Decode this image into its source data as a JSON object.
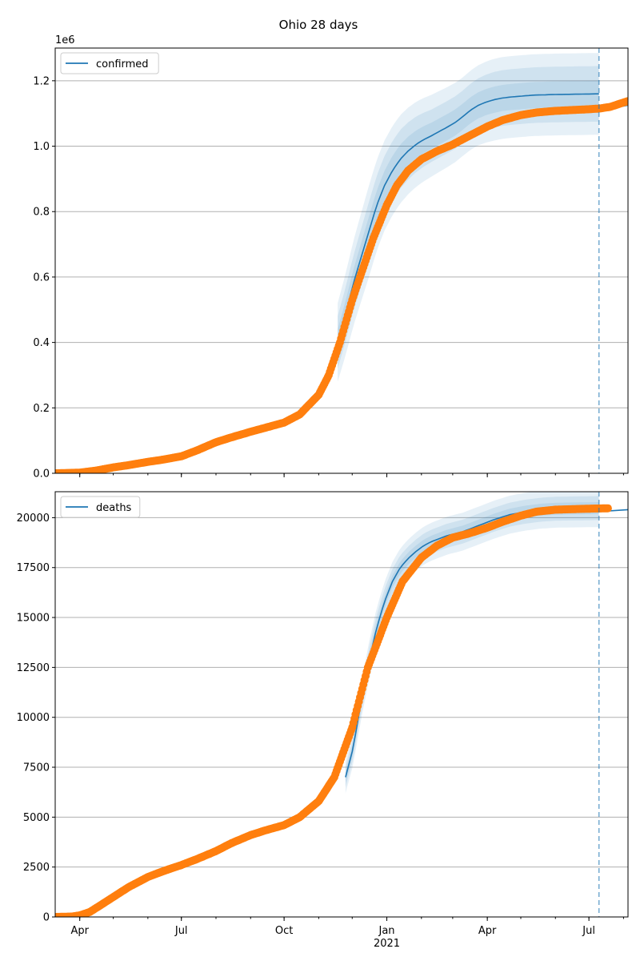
{
  "figure": {
    "title": "Ohio 28 days"
  },
  "colors": {
    "model": "#1f77b4",
    "observed": "#ff7f0e",
    "grid": "#b0b0b0"
  },
  "chart_data": [
    {
      "type": "line",
      "name": "confirmed-panel",
      "x_axis": {
        "type": "date",
        "range": [
          "2020-03-10",
          "2021-08-05"
        ],
        "major_ticks": [
          {
            "date": "2020-04-01",
            "label": "Apr"
          },
          {
            "date": "2020-07-01",
            "label": "Jul"
          },
          {
            "date": "2020-10-01",
            "label": "Oct"
          },
          {
            "date": "2021-01-01",
            "label": "Jan"
          },
          {
            "date": "2021-04-01",
            "label": "Apr"
          },
          {
            "date": "2021-07-01",
            "label": "Jul"
          }
        ],
        "show_tick_labels": false
      },
      "y_axis": {
        "ylim": [
          0,
          1300000
        ],
        "tick_values": [
          0,
          200000,
          400000,
          600000,
          800000,
          1000000,
          1200000
        ],
        "tick_labels": [
          "0.0",
          "0.2",
          "0.4",
          "0.6",
          "0.8",
          "1.0",
          "1.2"
        ],
        "offset_label": "1e6"
      },
      "grid": "horizontal",
      "legend": {
        "placement": "upper-left",
        "label": "confirmed"
      },
      "forecast_line": "2021-07-10",
      "model": [
        [
          "2020-11-18",
          400000
        ],
        [
          "2020-11-25",
          485000
        ],
        [
          "2020-12-02",
          580000
        ],
        [
          "2020-12-09",
          660000
        ],
        [
          "2020-12-16",
          740000
        ],
        [
          "2020-12-23",
          820000
        ],
        [
          "2020-12-30",
          880000
        ],
        [
          "2021-01-06",
          925000
        ],
        [
          "2021-01-13",
          960000
        ],
        [
          "2021-01-20",
          985000
        ],
        [
          "2021-01-27",
          1005000
        ],
        [
          "2021-02-03",
          1020000
        ],
        [
          "2021-02-10",
          1032000
        ],
        [
          "2021-02-17",
          1045000
        ],
        [
          "2021-02-24",
          1058000
        ],
        [
          "2021-03-03",
          1072000
        ],
        [
          "2021-03-10",
          1090000
        ],
        [
          "2021-03-17",
          1110000
        ],
        [
          "2021-03-24",
          1125000
        ],
        [
          "2021-03-31",
          1135000
        ],
        [
          "2021-04-07",
          1142000
        ],
        [
          "2021-04-14",
          1147000
        ],
        [
          "2021-04-21",
          1150000
        ],
        [
          "2021-04-28",
          1152000
        ],
        [
          "2021-05-05",
          1154000
        ],
        [
          "2021-05-12",
          1156000
        ],
        [
          "2021-06-01",
          1158000
        ],
        [
          "2021-07-10",
          1160000
        ]
      ],
      "band_offsets": [
        [
          "2020-11-18",
          40000,
          80000,
          120000
        ],
        [
          "2020-12-16",
          45000,
          90000,
          140000
        ],
        [
          "2021-01-13",
          45000,
          90000,
          135000
        ],
        [
          "2021-02-10",
          40000,
          80000,
          125000
        ],
        [
          "2021-03-10",
          40000,
          80000,
          120000
        ],
        [
          "2021-04-07",
          40000,
          85000,
          125000
        ],
        [
          "2021-05-05",
          40000,
          85000,
          125000
        ],
        [
          "2021-07-10",
          40000,
          85000,
          125000
        ]
      ],
      "observed": [
        [
          "2020-03-10",
          0
        ],
        [
          "2020-04-01",
          2000
        ],
        [
          "2020-04-15",
          8000
        ],
        [
          "2020-05-01",
          18000
        ],
        [
          "2020-05-15",
          25000
        ],
        [
          "2020-06-01",
          35000
        ],
        [
          "2020-06-15",
          42000
        ],
        [
          "2020-07-01",
          52000
        ],
        [
          "2020-07-15",
          70000
        ],
        [
          "2020-08-01",
          95000
        ],
        [
          "2020-08-15",
          110000
        ],
        [
          "2020-09-01",
          127000
        ],
        [
          "2020-09-15",
          140000
        ],
        [
          "2020-10-01",
          155000
        ],
        [
          "2020-10-15",
          180000
        ],
        [
          "2020-11-01",
          240000
        ],
        [
          "2020-11-10",
          300000
        ],
        [
          "2020-11-20",
          400000
        ],
        [
          "2020-12-01",
          530000
        ],
        [
          "2020-12-10",
          620000
        ],
        [
          "2020-12-20",
          720000
        ],
        [
          "2021-01-01",
          820000
        ],
        [
          "2021-01-10",
          880000
        ],
        [
          "2021-01-20",
          925000
        ],
        [
          "2021-02-01",
          960000
        ],
        [
          "2021-02-15",
          985000
        ],
        [
          "2021-03-01",
          1005000
        ],
        [
          "2021-03-15",
          1030000
        ],
        [
          "2021-04-01",
          1060000
        ],
        [
          "2021-04-15",
          1080000
        ],
        [
          "2021-05-01",
          1095000
        ],
        [
          "2021-05-15",
          1103000
        ],
        [
          "2021-06-01",
          1108000
        ],
        [
          "2021-07-01",
          1113000
        ],
        [
          "2021-07-10",
          1115000
        ],
        [
          "2021-07-20",
          1120000
        ],
        [
          "2021-08-05",
          1138000
        ]
      ],
      "model_after": [
        [
          "2021-07-10",
          1110000
        ],
        [
          "2021-08-05",
          1125000
        ]
      ]
    },
    {
      "type": "line",
      "name": "deaths-panel",
      "x_axis": {
        "type": "date",
        "range": [
          "2020-03-10",
          "2021-08-05"
        ],
        "major_ticks": [
          {
            "date": "2020-04-01",
            "label": "Apr"
          },
          {
            "date": "2020-07-01",
            "label": "Jul"
          },
          {
            "date": "2020-10-01",
            "label": "Oct"
          },
          {
            "date": "2021-01-01",
            "label": "Jan"
          },
          {
            "date": "2021-04-01",
            "label": "Apr"
          },
          {
            "date": "2021-07-01",
            "label": "Jul"
          }
        ],
        "show_tick_labels": true,
        "year_label": {
          "date": "2021-01-01",
          "label": "2021"
        }
      },
      "y_axis": {
        "ylim": [
          0,
          21300
        ],
        "tick_values": [
          0,
          2500,
          5000,
          7500,
          10000,
          12500,
          15000,
          17500,
          20000
        ],
        "tick_labels": [
          "0",
          "2500",
          "5000",
          "7500",
          "10000",
          "12500",
          "15000",
          "17500",
          "20000"
        ]
      },
      "grid": "horizontal",
      "legend": {
        "placement": "upper-left",
        "label": "deaths"
      },
      "forecast_line": "2021-07-10",
      "model": [
        [
          "2020-11-25",
          7000
        ],
        [
          "2020-12-02",
          8500
        ],
        [
          "2020-12-09",
          10800
        ],
        [
          "2020-12-16",
          12800
        ],
        [
          "2020-12-23",
          14500
        ],
        [
          "2020-12-30",
          15800
        ],
        [
          "2021-01-06",
          16800
        ],
        [
          "2021-01-13",
          17500
        ],
        [
          "2021-01-20",
          17950
        ],
        [
          "2021-01-27",
          18300
        ],
        [
          "2021-02-03",
          18600
        ],
        [
          "2021-02-10",
          18800
        ],
        [
          "2021-02-17",
          18950
        ],
        [
          "2021-02-24",
          19100
        ],
        [
          "2021-03-03",
          19200
        ],
        [
          "2021-03-10",
          19300
        ],
        [
          "2021-03-17",
          19450
        ],
        [
          "2021-03-24",
          19600
        ],
        [
          "2021-04-07",
          19900
        ],
        [
          "2021-04-21",
          20150
        ],
        [
          "2021-05-05",
          20300
        ],
        [
          "2021-05-19",
          20400
        ],
        [
          "2021-06-02",
          20450
        ],
        [
          "2021-07-10",
          20480
        ]
      ],
      "band_offsets": [
        [
          "2020-11-25",
          250,
          500,
          800
        ],
        [
          "2020-12-23",
          300,
          650,
          1000
        ],
        [
          "2021-01-20",
          300,
          600,
          950
        ],
        [
          "2021-02-17",
          300,
          600,
          950
        ],
        [
          "2021-03-17",
          300,
          600,
          950
        ],
        [
          "2021-04-21",
          300,
          600,
          950
        ],
        [
          "2021-07-10",
          300,
          600,
          950
        ]
      ],
      "observed": [
        [
          "2020-03-10",
          0
        ],
        [
          "2020-03-25",
          20
        ],
        [
          "2020-04-01",
          80
        ],
        [
          "2020-04-10",
          250
        ],
        [
          "2020-04-20",
          600
        ],
        [
          "2020-05-01",
          1000
        ],
        [
          "2020-05-15",
          1500
        ],
        [
          "2020-06-01",
          2000
        ],
        [
          "2020-06-15",
          2300
        ],
        [
          "2020-07-01",
          2600
        ],
        [
          "2020-07-15",
          2900
        ],
        [
          "2020-08-01",
          3300
        ],
        [
          "2020-08-15",
          3700
        ],
        [
          "2020-09-01",
          4100
        ],
        [
          "2020-09-15",
          4350
        ],
        [
          "2020-10-01",
          4600
        ],
        [
          "2020-10-15",
          5000
        ],
        [
          "2020-11-01",
          5800
        ],
        [
          "2020-11-15",
          7000
        ],
        [
          "2020-12-01",
          9500
        ],
        [
          "2020-12-15",
          12500
        ],
        [
          "2021-01-01",
          15000
        ],
        [
          "2021-01-15",
          16800
        ],
        [
          "2021-02-01",
          18000
        ],
        [
          "2021-02-15",
          18600
        ],
        [
          "2021-03-01",
          19000
        ],
        [
          "2021-03-15",
          19200
        ],
        [
          "2021-04-01",
          19500
        ],
        [
          "2021-04-15",
          19800
        ],
        [
          "2021-05-01",
          20100
        ],
        [
          "2021-05-15",
          20300
        ],
        [
          "2021-06-01",
          20400
        ],
        [
          "2021-07-01",
          20450
        ],
        [
          "2021-07-18",
          20470
        ]
      ],
      "model_after": [
        [
          "2021-07-10",
          20300
        ],
        [
          "2021-08-05",
          20400
        ]
      ]
    }
  ]
}
